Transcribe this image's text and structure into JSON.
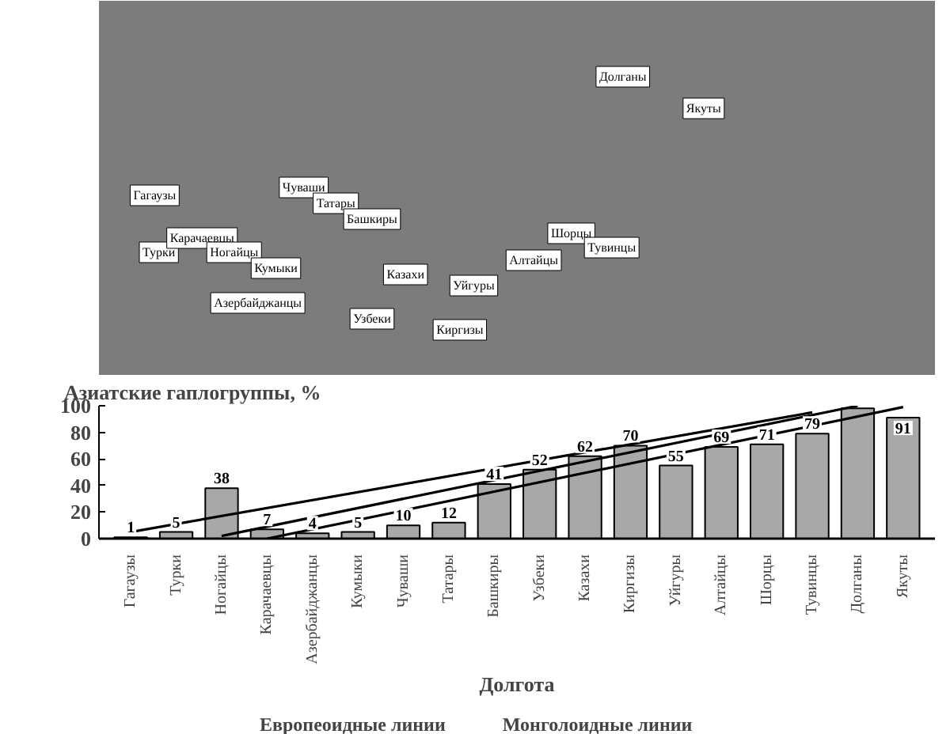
{
  "chart_data": [
    {
      "type": "other",
      "annotations": [
        "Гагаузы",
        "Турки",
        "Карачаевцы",
        "Ногайцы",
        "Кумыки",
        "Азербайджанцы",
        "Чуваши",
        "Татары",
        "Башкиры",
        "Казахи",
        "Узбеки",
        "Уйгуры",
        "Киргизы",
        "Алтайцы",
        "Шорцы",
        "Тувинцы",
        "Долганы",
        "Якуты"
      ]
    },
    {
      "type": "bar",
      "title": "Азиатские гаплогруппы, %",
      "xlabel": "Долгота",
      "categories": [
        "Гагаузы",
        "Турки",
        "Ногайцы",
        "Карачаевцы",
        "Азербайджанцы",
        "Кумыки",
        "Чуваши",
        "Татары",
        "Башкиры",
        "Узбеки",
        "Казахи",
        "Киргизы",
        "Уйгуры",
        "Алтайцы",
        "Шорцы",
        "Тувинцы",
        "Долганы",
        "Якуты"
      ],
      "series": [
        {
          "type": "bar",
          "color": "#a8a8a8",
          "values": [
            1,
            5,
            38,
            7,
            4,
            5,
            10,
            12,
            41,
            52,
            62,
            70,
            55,
            69,
            71,
            79,
            98,
            91
          ],
          "value_labels": [
            "1",
            "5",
            "38",
            "7",
            "4",
            "5",
            "10",
            "12",
            "41",
            "52",
            "62",
            "70",
            "55",
            "69",
            "71",
            "79",
            null,
            "91"
          ]
        },
        {
          "type": "line",
          "color": "#000000",
          "x": [
            "Гагаузы",
            "Тувинцы"
          ],
          "values": [
            5,
            95
          ]
        },
        {
          "type": "line",
          "color": "#000000",
          "x": [
            "Ногайцы",
            "Долганы"
          ],
          "values": [
            2,
            100
          ]
        },
        {
          "type": "line",
          "color": "#000000",
          "x": [
            "Карачаевцы",
            "Якуты"
          ],
          "values": [
            0,
            99
          ]
        }
      ],
      "ylim": [
        0,
        100
      ],
      "yticks": [
        0,
        20,
        40,
        60,
        80,
        100
      ],
      "grid": false
    },
    {
      "type": "other",
      "annotations": [
        "Европеоидные линии",
        "Монголоидные линии"
      ]
    }
  ]
}
